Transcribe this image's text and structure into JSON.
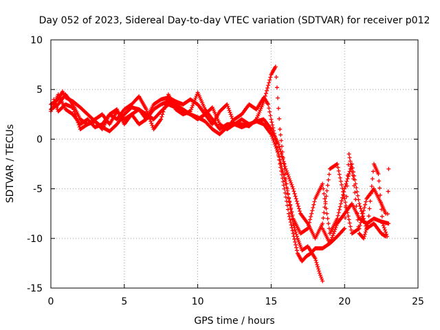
{
  "chart_data": {
    "type": "scatter",
    "title": "Day 052 of 2023, Sidereal Day-to-day VTEC variation (SDTVAR) for receiver p012",
    "xlabel": "GPS time / hours",
    "ylabel": "SDTVAR / TECUs",
    "xlim": [
      0,
      25
    ],
    "ylim": [
      -15,
      10
    ],
    "xticks": [
      "0",
      "5",
      "10",
      "15",
      "20",
      "25"
    ],
    "yticks": [
      "10",
      "5",
      "0",
      "-5",
      "-10",
      "-15"
    ],
    "xtick_values": [
      0,
      5,
      10,
      15,
      20,
      25
    ],
    "ytick_values": [
      10,
      5,
      0,
      -5,
      -10,
      -15
    ],
    "grid": true,
    "marker": "+",
    "color": "#ff0000",
    "series": [
      {
        "values": [
          [
            0,
            3.5
          ],
          [
            0.5,
            4.0
          ],
          [
            0.8,
            4.8
          ],
          [
            1.0,
            4.2
          ],
          [
            1.5,
            3.8
          ],
          [
            2.0,
            3.2
          ],
          [
            2.5,
            2.5
          ],
          [
            3.0,
            1.8
          ],
          [
            3.5,
            1.2
          ],
          [
            4.0,
            0.8
          ],
          [
            4.5,
            1.5
          ],
          [
            5.0,
            2.5
          ],
          [
            5.5,
            3.2
          ],
          [
            6.0,
            3.0
          ],
          [
            6.5,
            2.5
          ],
          [
            7.0,
            2.0
          ],
          [
            7.5,
            2.8
          ],
          [
            8.0,
            3.5
          ],
          [
            8.5,
            3.2
          ],
          [
            9.0,
            2.8
          ],
          [
            9.5,
            2.5
          ],
          [
            10.0,
            2.2
          ],
          [
            10.5,
            1.8
          ],
          [
            11.0,
            1.0
          ],
          [
            11.5,
            0.5
          ],
          [
            12.0,
            1.2
          ],
          [
            12.5,
            2.0
          ],
          [
            13.0,
            2.5
          ],
          [
            13.5,
            3.5
          ],
          [
            14.0,
            3.0
          ],
          [
            14.5,
            4.2
          ],
          [
            14.8,
            3.5
          ],
          [
            15.0,
            2.0
          ],
          [
            15.3,
            0.0
          ],
          [
            15.6,
            -2.5
          ],
          [
            15.9,
            -5.0
          ],
          [
            16.2,
            -7.5
          ],
          [
            16.5,
            -9.5
          ],
          [
            16.8,
            -11.5
          ],
          [
            17.1,
            -12.3
          ],
          [
            17.4,
            -11.8
          ],
          [
            17.7,
            -11.5
          ],
          [
            18.0,
            -11.0
          ],
          [
            18.5,
            -11.0
          ],
          [
            19.0,
            -10.5
          ],
          [
            19.5,
            -8.5
          ],
          [
            20.0,
            -7.5
          ],
          [
            20.5,
            -6.5
          ],
          [
            21.0,
            -8.0
          ],
          [
            21.5,
            -8.5
          ],
          [
            22.0,
            -8.0
          ],
          [
            22.5,
            -8.3
          ],
          [
            23.0,
            -8.5
          ]
        ]
      },
      {
        "values": [
          [
            0,
            3.0
          ],
          [
            0.5,
            3.5
          ],
          [
            1.0,
            4.5
          ],
          [
            1.5,
            3.5
          ],
          [
            2.0,
            2.0
          ],
          [
            2.5,
            1.5
          ],
          [
            3.0,
            2.0
          ],
          [
            3.5,
            2.5
          ],
          [
            4.0,
            1.5
          ],
          [
            4.5,
            2.8
          ],
          [
            5.0,
            2.0
          ],
          [
            5.5,
            2.5
          ],
          [
            6.0,
            1.5
          ],
          [
            6.5,
            2.0
          ],
          [
            7.0,
            3.5
          ],
          [
            7.5,
            4.0
          ],
          [
            8.0,
            4.2
          ],
          [
            8.5,
            3.8
          ],
          [
            9.0,
            3.5
          ],
          [
            9.5,
            4.0
          ],
          [
            10.0,
            3.5
          ],
          [
            10.5,
            2.5
          ],
          [
            11.0,
            1.5
          ],
          [
            11.5,
            2.8
          ],
          [
            12.0,
            3.5
          ],
          [
            12.5,
            1.5
          ],
          [
            13.0,
            1.5
          ],
          [
            13.5,
            1.3
          ],
          [
            14.0,
            2.0
          ],
          [
            14.5,
            3.8
          ],
          [
            15.0,
            6.5
          ],
          [
            15.3,
            7.3
          ],
          [
            15.6,
            1.0
          ],
          [
            15.9,
            -3.0
          ],
          [
            16.2,
            -6.0
          ],
          [
            16.5,
            -8.5
          ],
          [
            16.8,
            -10.0
          ],
          [
            17.1,
            -11.2
          ],
          [
            17.5,
            -10.8
          ],
          [
            18.0,
            -12.0
          ],
          [
            18.3,
            -13.5
          ],
          [
            18.5,
            -14.3
          ]
        ]
      },
      {
        "values": [
          [
            0,
            2.8
          ],
          [
            0.5,
            4.5
          ],
          [
            1.0,
            3.0
          ],
          [
            1.5,
            2.5
          ],
          [
            2.0,
            1.5
          ],
          [
            2.5,
            2.0
          ],
          [
            3.0,
            1.2
          ],
          [
            3.5,
            1.5
          ],
          [
            4.0,
            2.5
          ],
          [
            4.5,
            2.0
          ],
          [
            5.0,
            3.0
          ],
          [
            5.5,
            3.5
          ],
          [
            6.0,
            4.3
          ],
          [
            6.5,
            3.0
          ],
          [
            7.0,
            1.0
          ],
          [
            7.5,
            2.0
          ],
          [
            8.0,
            4.5
          ],
          [
            8.5,
            3.0
          ],
          [
            9.0,
            2.5
          ],
          [
            9.5,
            2.8
          ],
          [
            10.0,
            4.7
          ],
          [
            10.5,
            3.0
          ],
          [
            11.0,
            2.0
          ],
          [
            11.5,
            1.0
          ],
          [
            12.0,
            1.5
          ],
          [
            12.5,
            1.5
          ],
          [
            13.0,
            1.2
          ],
          [
            13.5,
            1.5
          ],
          [
            14.0,
            1.8
          ],
          [
            14.5,
            1.5
          ],
          [
            15.0,
            0.5
          ],
          [
            15.5,
            -1.5
          ],
          [
            16.0,
            -4.5
          ],
          [
            16.5,
            -8.0
          ],
          [
            17.0,
            -9.5
          ],
          [
            17.5,
            -9.0
          ],
          [
            18.0,
            -6.0
          ],
          [
            18.5,
            -4.5
          ],
          [
            19.0,
            -9.5
          ],
          [
            19.5,
            -8.0
          ],
          [
            20.0,
            -5.0
          ],
          [
            20.5,
            -2.5
          ],
          [
            21.0,
            -6.5
          ],
          [
            21.5,
            -9.0
          ],
          [
            22.0,
            -8.5
          ],
          [
            22.5,
            -9.5
          ],
          [
            22.8,
            -9.8
          ]
        ]
      },
      {
        "values": [
          [
            0.2,
            4.0
          ],
          [
            0.5,
            2.8
          ],
          [
            1.0,
            3.5
          ],
          [
            1.5,
            3.2
          ],
          [
            2.0,
            1.0
          ],
          [
            2.5,
            1.5
          ],
          [
            3.0,
            1.8
          ],
          [
            3.5,
            1.0
          ],
          [
            4.0,
            2.5
          ],
          [
            4.5,
            3.0
          ],
          [
            5.0,
            1.5
          ],
          [
            5.5,
            2.5
          ],
          [
            6.0,
            3.0
          ],
          [
            6.5,
            2.0
          ],
          [
            7.0,
            3.0
          ],
          [
            7.5,
            3.5
          ],
          [
            8.0,
            3.8
          ],
          [
            8.5,
            3.5
          ],
          [
            9.0,
            3.0
          ],
          [
            9.5,
            2.5
          ],
          [
            10.0,
            2.0
          ],
          [
            10.5,
            2.5
          ],
          [
            11.0,
            3.2
          ],
          [
            11.5,
            1.5
          ],
          [
            12.0,
            1.0
          ],
          [
            12.5,
            1.5
          ],
          [
            13.0,
            2.0
          ],
          [
            13.5,
            1.5
          ],
          [
            14.0,
            1.8
          ],
          [
            14.5,
            2.0
          ],
          [
            15.0,
            1.0
          ],
          [
            15.5,
            -0.5
          ],
          [
            16.0,
            -3.0
          ],
          [
            16.5,
            -5.0
          ],
          [
            17.0,
            -7.5
          ],
          [
            17.5,
            -8.5
          ],
          [
            18.0,
            -10.0
          ],
          [
            18.5,
            -8.5
          ],
          [
            19.0,
            -3.0
          ],
          [
            19.5,
            -2.5
          ],
          [
            20.0,
            -6.0
          ],
          [
            20.5,
            -9.5
          ],
          [
            21.0,
            -9.0
          ],
          [
            21.5,
            -6.0
          ],
          [
            22.0,
            -5.0
          ],
          [
            22.5,
            -6.5
          ],
          [
            22.8,
            -7.5
          ]
        ]
      },
      {
        "values": [
          [
            18.5,
            -9.0
          ],
          [
            19.0,
            -10.5
          ],
          [
            19.5,
            -9.8
          ],
          [
            20.0,
            -9.0
          ],
          [
            20.3,
            -1.5
          ],
          [
            20.6,
            -4.0
          ],
          [
            21.0,
            -9.5
          ],
          [
            21.3,
            -10.0
          ],
          [
            21.6,
            -8.5
          ],
          [
            22.0,
            -2.5
          ],
          [
            22.3,
            -3.5
          ],
          [
            22.6,
            -8.5
          ],
          [
            22.9,
            -9.8
          ],
          [
            23.0,
            -3.0
          ]
        ]
      }
    ]
  }
}
